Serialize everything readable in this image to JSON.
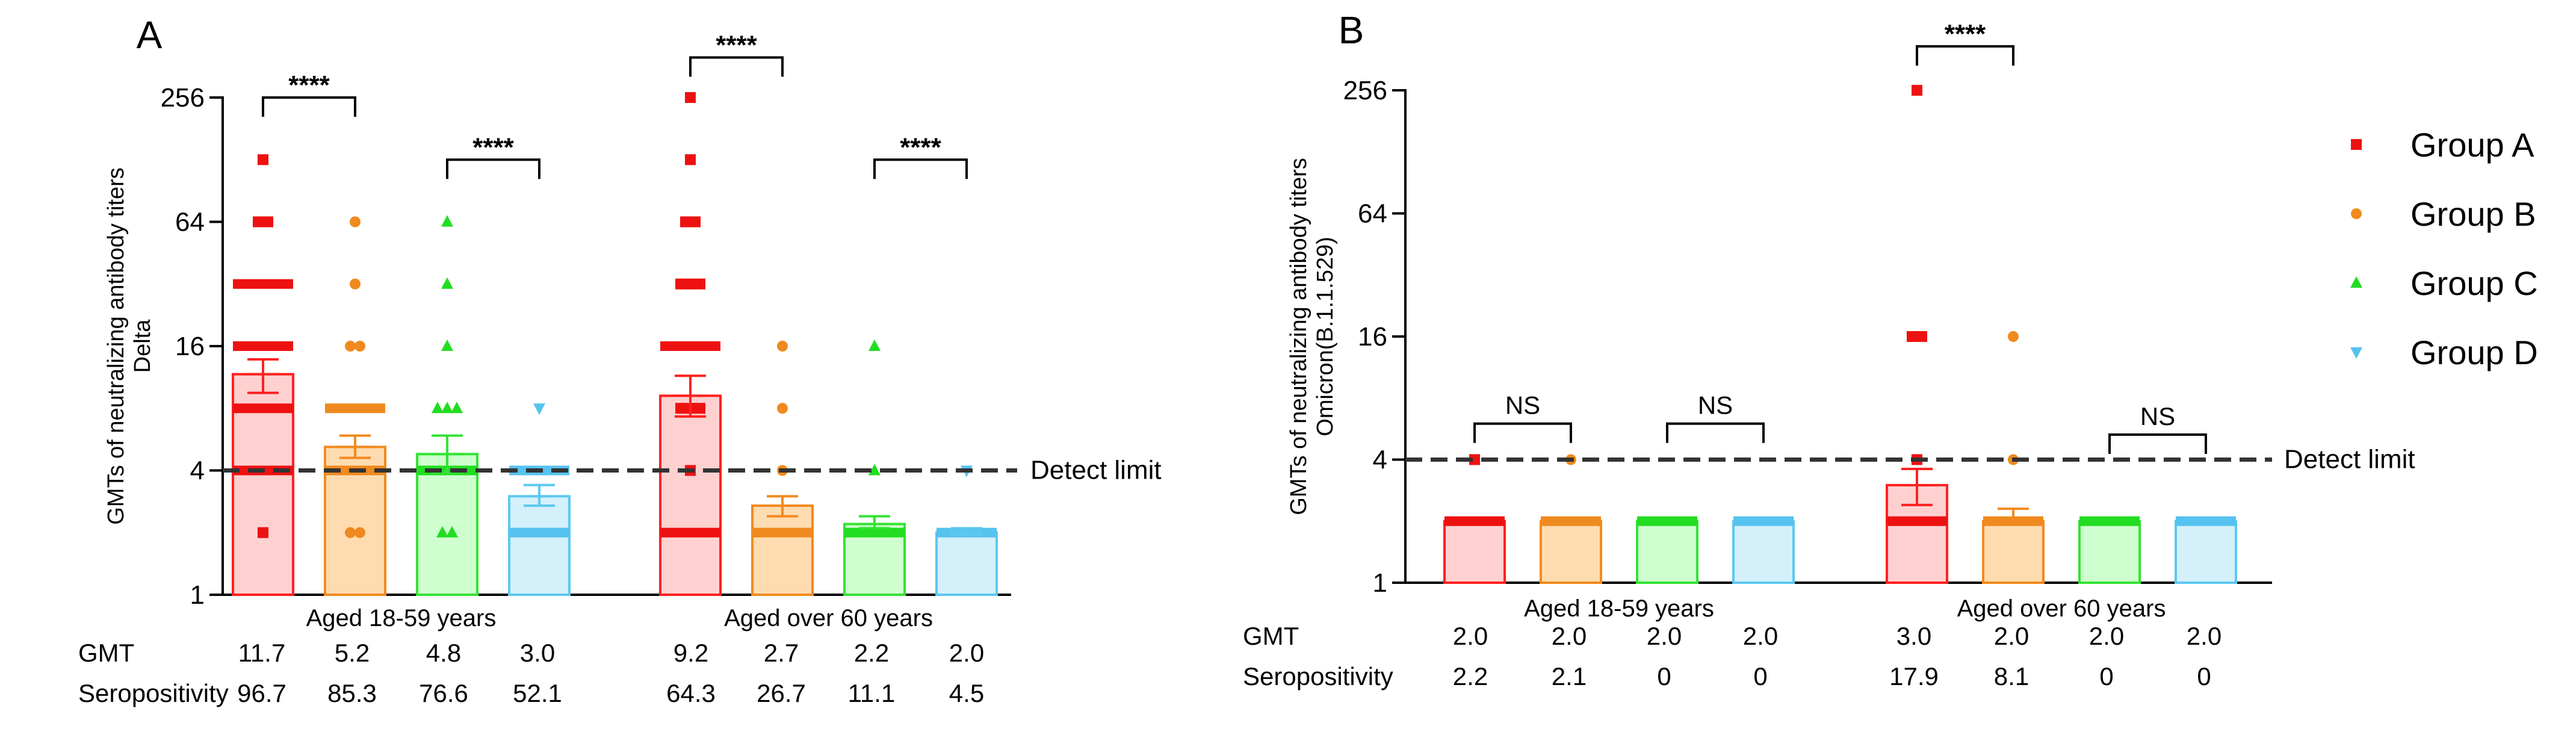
{
  "colors": {
    "A": {
      "stroke": "#ff2020",
      "fill": "#ffd0d0",
      "point": "#ee1111"
    },
    "B": {
      "stroke": "#f28a1e",
      "fill": "#ffdcb0",
      "point": "#ef8a1e"
    },
    "C": {
      "stroke": "#33e333",
      "fill": "#cfffcf",
      "point": "#22dd22"
    },
    "D": {
      "stroke": "#5cc8f0",
      "fill": "#d4f0fb",
      "point": "#56c2ef"
    }
  },
  "legend": [
    {
      "key": "A",
      "label": "Group A",
      "shape": "square"
    },
    {
      "key": "B",
      "label": "Group B",
      "shape": "circle"
    },
    {
      "key": "C",
      "label": "Group C",
      "shape": "triangle-up"
    },
    {
      "key": "D",
      "label": "Group D",
      "shape": "triangle-down"
    }
  ],
  "chart_data": [
    {
      "panel": "A",
      "type": "bar",
      "ylabel_lines": [
        "GMTs of neutralizing antibody titers",
        "Delta"
      ],
      "y_scale": "log2",
      "ylim": [
        1,
        256
      ],
      "yticks": [
        "1",
        "4",
        "16",
        "64",
        "256"
      ],
      "ytick_values": [
        1,
        4,
        16,
        64,
        256
      ],
      "detect_limit": {
        "value": 4,
        "label": "Detect limit"
      },
      "clusters": [
        {
          "label": "Aged 18-59 years",
          "bars": [
            {
              "group": "A",
              "gmt": 11.7,
              "err_low": 9.5,
              "err_high": 13.8,
              "points": [
                {
                  "y": 128,
                  "n": 1
                },
                {
                  "y": 64,
                  "n": 2
                },
                {
                  "y": 32,
                  "n": 5
                },
                {
                  "y": 16,
                  "n": 5
                },
                {
                  "y": 8,
                  "n": 4
                },
                {
                  "y": 4,
                  "n": 5
                },
                {
                  "y": 2,
                  "n": 1
                }
              ]
            },
            {
              "group": "B",
              "gmt": 5.2,
              "err_low": 4.6,
              "err_high": 5.9,
              "points": [
                {
                  "y": 64,
                  "n": 1
                },
                {
                  "y": 32,
                  "n": 1
                },
                {
                  "y": 16,
                  "n": 2
                },
                {
                  "y": 8,
                  "n": 4
                },
                {
                  "y": 4,
                  "n": 5
                },
                {
                  "y": 2,
                  "n": 2
                }
              ]
            },
            {
              "group": "C",
              "gmt": 4.8,
              "err_low": 3.9,
              "err_high": 5.9,
              "points": [
                {
                  "y": 64,
                  "n": 1
                },
                {
                  "y": 32,
                  "n": 1
                },
                {
                  "y": 16,
                  "n": 1
                },
                {
                  "y": 8,
                  "n": 3
                },
                {
                  "y": 4,
                  "n": 4
                },
                {
                  "y": 2,
                  "n": 2
                }
              ]
            },
            {
              "group": "D",
              "gmt": 3.0,
              "err_low": 2.7,
              "err_high": 3.4,
              "points": [
                {
                  "y": 8,
                  "n": 1
                },
                {
                  "y": 4,
                  "n": 4
                },
                {
                  "y": 2,
                  "n": 4
                }
              ]
            }
          ]
        },
        {
          "label": "Aged over 60 years",
          "bars": [
            {
              "group": "A",
              "gmt": 9.2,
              "err_low": 7.3,
              "err_high": 11.5,
              "points": [
                {
                  "y": 256,
                  "n": 1
                },
                {
                  "y": 128,
                  "n": 1
                },
                {
                  "y": 64,
                  "n": 2
                },
                {
                  "y": 32,
                  "n": 3
                },
                {
                  "y": 16,
                  "n": 5
                },
                {
                  "y": 8,
                  "n": 3
                },
                {
                  "y": 4,
                  "n": 1
                },
                {
                  "y": 2,
                  "n": 5
                }
              ]
            },
            {
              "group": "B",
              "gmt": 2.7,
              "err_low": 2.4,
              "err_high": 3.0,
              "points": [
                {
                  "y": 16,
                  "n": 1
                },
                {
                  "y": 8,
                  "n": 1
                },
                {
                  "y": 4,
                  "n": 1
                },
                {
                  "y": 2,
                  "n": 4
                }
              ]
            },
            {
              "group": "C",
              "gmt": 2.2,
              "err_low": 2.1,
              "err_high": 2.4,
              "points": [
                {
                  "y": 16,
                  "n": 1
                },
                {
                  "y": 4,
                  "n": 1
                },
                {
                  "y": 2,
                  "n": 4
                }
              ]
            },
            {
              "group": "D",
              "gmt": 2.0,
              "err_low": 1.95,
              "err_high": 2.1,
              "points": [
                {
                  "y": 4,
                  "n": 1
                },
                {
                  "y": 2,
                  "n": 4
                }
              ]
            }
          ]
        }
      ],
      "comparisons": [
        {
          "cluster": 0,
          "from": 0,
          "to": 1,
          "y": 256,
          "label": "****"
        },
        {
          "cluster": 0,
          "from": 2,
          "to": 3,
          "y": 128,
          "label": "****"
        },
        {
          "cluster": 1,
          "from": 0,
          "to": 1,
          "y": 400,
          "label": "****"
        },
        {
          "cluster": 1,
          "from": 2,
          "to": 3,
          "y": 128,
          "label": "****"
        }
      ],
      "table": {
        "rows": [
          {
            "label": "GMT",
            "values": [
              "11.7",
              "5.2",
              "4.8",
              "3.0",
              "9.2",
              "2.7",
              "2.2",
              "2.0"
            ]
          },
          {
            "label": "Seropositivity",
            "values": [
              "96.7",
              "85.3",
              "76.6",
              "52.1",
              "64.3",
              "26.7",
              "11.1",
              "4.5"
            ]
          }
        ]
      }
    },
    {
      "panel": "B",
      "type": "bar",
      "ylabel_lines": [
        "GMTs of neutralizing antibody titers",
        "Omicron(B.1.1.529)"
      ],
      "y_scale": "log2",
      "ylim": [
        1,
        256
      ],
      "yticks": [
        "1",
        "4",
        "16",
        "64",
        "256"
      ],
      "ytick_values": [
        1,
        4,
        16,
        64,
        256
      ],
      "detect_limit": {
        "value": 4,
        "label": "Detect limit"
      },
      "clusters": [
        {
          "label": "Aged 18-59 years",
          "bars": [
            {
              "group": "A",
              "gmt": 2.0,
              "err_low": 2.0,
              "err_high": 2.0,
              "points": [
                {
                  "y": 4,
                  "n": 1
                },
                {
                  "y": 2,
                  "n": 5
                }
              ]
            },
            {
              "group": "B",
              "gmt": 2.0,
              "err_low": 2.0,
              "err_high": 2.0,
              "points": [
                {
                  "y": 4,
                  "n": 1
                },
                {
                  "y": 2,
                  "n": 5
                }
              ]
            },
            {
              "group": "C",
              "gmt": 2.0,
              "err_low": 2.0,
              "err_high": 2.0,
              "points": [
                {
                  "y": 2,
                  "n": 5
                }
              ]
            },
            {
              "group": "D",
              "gmt": 2.0,
              "err_low": 2.0,
              "err_high": 2.0,
              "points": [
                {
                  "y": 2,
                  "n": 5
                }
              ]
            }
          ]
        },
        {
          "label": "Aged over 60 years",
          "bars": [
            {
              "group": "A",
              "gmt": 3.0,
              "err_low": 2.4,
              "err_high": 3.6,
              "points": [
                {
                  "y": 256,
                  "n": 1
                },
                {
                  "y": 16,
                  "n": 2
                },
                {
                  "y": 4,
                  "n": 1
                },
                {
                  "y": 2,
                  "n": 5
                }
              ]
            },
            {
              "group": "B",
              "gmt": 2.0,
              "err_low": 2.0,
              "err_high": 2.3,
              "points": [
                {
                  "y": 16,
                  "n": 1
                },
                {
                  "y": 4,
                  "n": 1
                },
                {
                  "y": 2,
                  "n": 5
                }
              ]
            },
            {
              "group": "C",
              "gmt": 2.0,
              "err_low": 2.0,
              "err_high": 2.0,
              "points": [
                {
                  "y": 2,
                  "n": 5
                }
              ]
            },
            {
              "group": "D",
              "gmt": 2.0,
              "err_low": 2.0,
              "err_high": 2.0,
              "points": [
                {
                  "y": 2,
                  "n": 5
                }
              ]
            }
          ]
        }
      ],
      "comparisons": [
        {
          "cluster": 0,
          "from": 0,
          "to": 1,
          "y": 6,
          "label": "NS"
        },
        {
          "cluster": 0,
          "from": 2,
          "to": 3,
          "y": 6,
          "label": "NS"
        },
        {
          "cluster": 1,
          "from": 0,
          "to": 1,
          "y": 420,
          "label": "****"
        },
        {
          "cluster": 1,
          "from": 2,
          "to": 3,
          "y": 5.3,
          "label": "NS"
        }
      ],
      "table": {
        "rows": [
          {
            "label": "GMT",
            "values": [
              "2.0",
              "2.0",
              "2.0",
              "2.0",
              "3.0",
              "2.0",
              "2.0",
              "2.0"
            ]
          },
          {
            "label": "Seropositivity",
            "values": [
              "2.2",
              "2.1",
              "0",
              "0",
              "17.9",
              "8.1",
              "0",
              "0"
            ]
          }
        ]
      }
    }
  ]
}
